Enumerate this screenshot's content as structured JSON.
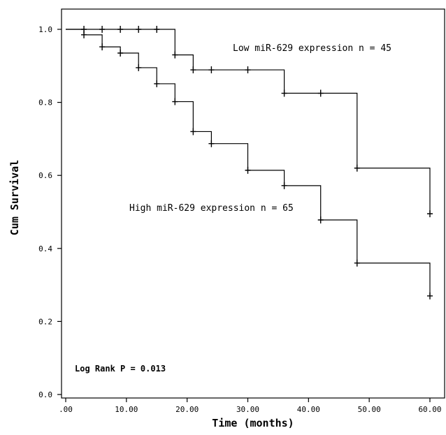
{
  "chart_data": {
    "type": "line",
    "xlabel": "Time (months)",
    "ylabel": "Cum Survival",
    "xlim": [
      0,
      62
    ],
    "ylim": [
      0,
      1.03
    ],
    "x_ticks": [
      {
        "value": 0,
        "label": ".00"
      },
      {
        "value": 10,
        "label": "10.00"
      },
      {
        "value": 20,
        "label": "20.00"
      },
      {
        "value": 30,
        "label": "30.00"
      },
      {
        "value": 40,
        "label": "40.00"
      },
      {
        "value": 50,
        "label": "50.00"
      },
      {
        "value": 60,
        "label": "60.00"
      }
    ],
    "y_ticks": [
      {
        "value": 0,
        "label": "0.0"
      },
      {
        "value": 0.2,
        "label": "0.2"
      },
      {
        "value": 0.4,
        "label": "0.4"
      },
      {
        "value": 0.6,
        "label": "0.6"
      },
      {
        "value": 0.8,
        "label": "0.8"
      },
      {
        "value": 1.0,
        "label": "1.0"
      }
    ],
    "grid": false,
    "series": [
      {
        "name": "Low miR-629 expression n = 45",
        "steps": [
          {
            "x": 0,
            "y": 1.0
          },
          {
            "x": 18,
            "y": 0.93
          },
          {
            "x": 21,
            "y": 0.889
          },
          {
            "x": 36,
            "y": 0.825
          },
          {
            "x": 48,
            "y": 0.62
          },
          {
            "x": 60,
            "y": 0.495
          }
        ],
        "censors": [
          {
            "x": 3,
            "y": 1.0
          },
          {
            "x": 6,
            "y": 1.0
          },
          {
            "x": 9,
            "y": 1.0
          },
          {
            "x": 12,
            "y": 1.0
          },
          {
            "x": 15,
            "y": 1.0
          },
          {
            "x": 18,
            "y": 0.93
          },
          {
            "x": 21,
            "y": 0.889
          },
          {
            "x": 24,
            "y": 0.889
          },
          {
            "x": 30,
            "y": 0.889
          },
          {
            "x": 36,
            "y": 0.825
          },
          {
            "x": 42,
            "y": 0.825
          },
          {
            "x": 48,
            "y": 0.62
          },
          {
            "x": 60,
            "y": 0.495
          }
        ]
      },
      {
        "name": "High miR-629 expression n = 65",
        "steps": [
          {
            "x": 0,
            "y": 1.0
          },
          {
            "x": 3,
            "y": 0.985
          },
          {
            "x": 6,
            "y": 0.952
          },
          {
            "x": 9,
            "y": 0.935
          },
          {
            "x": 12,
            "y": 0.895
          },
          {
            "x": 15,
            "y": 0.851
          },
          {
            "x": 18,
            "y": 0.802
          },
          {
            "x": 21,
            "y": 0.72
          },
          {
            "x": 24,
            "y": 0.687
          },
          {
            "x": 30,
            "y": 0.614
          },
          {
            "x": 36,
            "y": 0.572
          },
          {
            "x": 42,
            "y": 0.478
          },
          {
            "x": 48,
            "y": 0.36
          },
          {
            "x": 60,
            "y": 0.27
          }
        ],
        "censors": [
          {
            "x": 3,
            "y": 0.985
          },
          {
            "x": 6,
            "y": 0.952
          },
          {
            "x": 9,
            "y": 0.935
          },
          {
            "x": 12,
            "y": 0.895
          },
          {
            "x": 15,
            "y": 0.851
          },
          {
            "x": 18,
            "y": 0.802
          },
          {
            "x": 21,
            "y": 0.72
          },
          {
            "x": 24,
            "y": 0.687
          },
          {
            "x": 30,
            "y": 0.614
          },
          {
            "x": 36,
            "y": 0.572
          },
          {
            "x": 42,
            "y": 0.478
          },
          {
            "x": 48,
            "y": 0.36
          },
          {
            "x": 60,
            "y": 0.27
          }
        ]
      }
    ],
    "annotations": {
      "low": "Low miR-629 expression n = 45",
      "high": "High miR-629 expression n = 65",
      "logrank": "Log Rank P = 0.013"
    }
  }
}
